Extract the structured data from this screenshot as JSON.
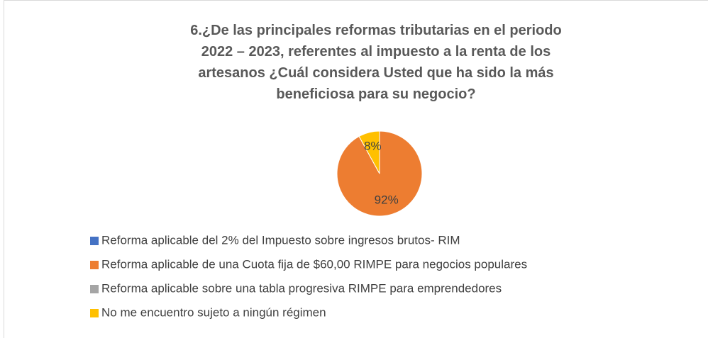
{
  "chart_data": {
    "type": "pie",
    "title": "6.¿De las principales reformas tributarias en el periodo 2022 – 2023, referentes al impuesto a la renta de los artesanos ¿Cuál considera Usted que ha sido la más beneficiosa para su negocio?",
    "categories": [
      "Reforma aplicable del 2% del Impuesto sobre ingresos brutos-  RIM",
      "Reforma aplicable de una Cuota fija de $60,00 RIMPE para negocios populares",
      "Reforma aplicable sobre una tabla progresiva RIMPE para emprendedores",
      "No me encuentro sujeto a ningún régimen"
    ],
    "values": [
      0,
      92,
      0,
      8
    ],
    "value_labels": [
      null,
      "92%",
      null,
      "8%"
    ],
    "colors": [
      "#4472c4",
      "#ed7d31",
      "#a5a5a5",
      "#ffc000"
    ]
  }
}
